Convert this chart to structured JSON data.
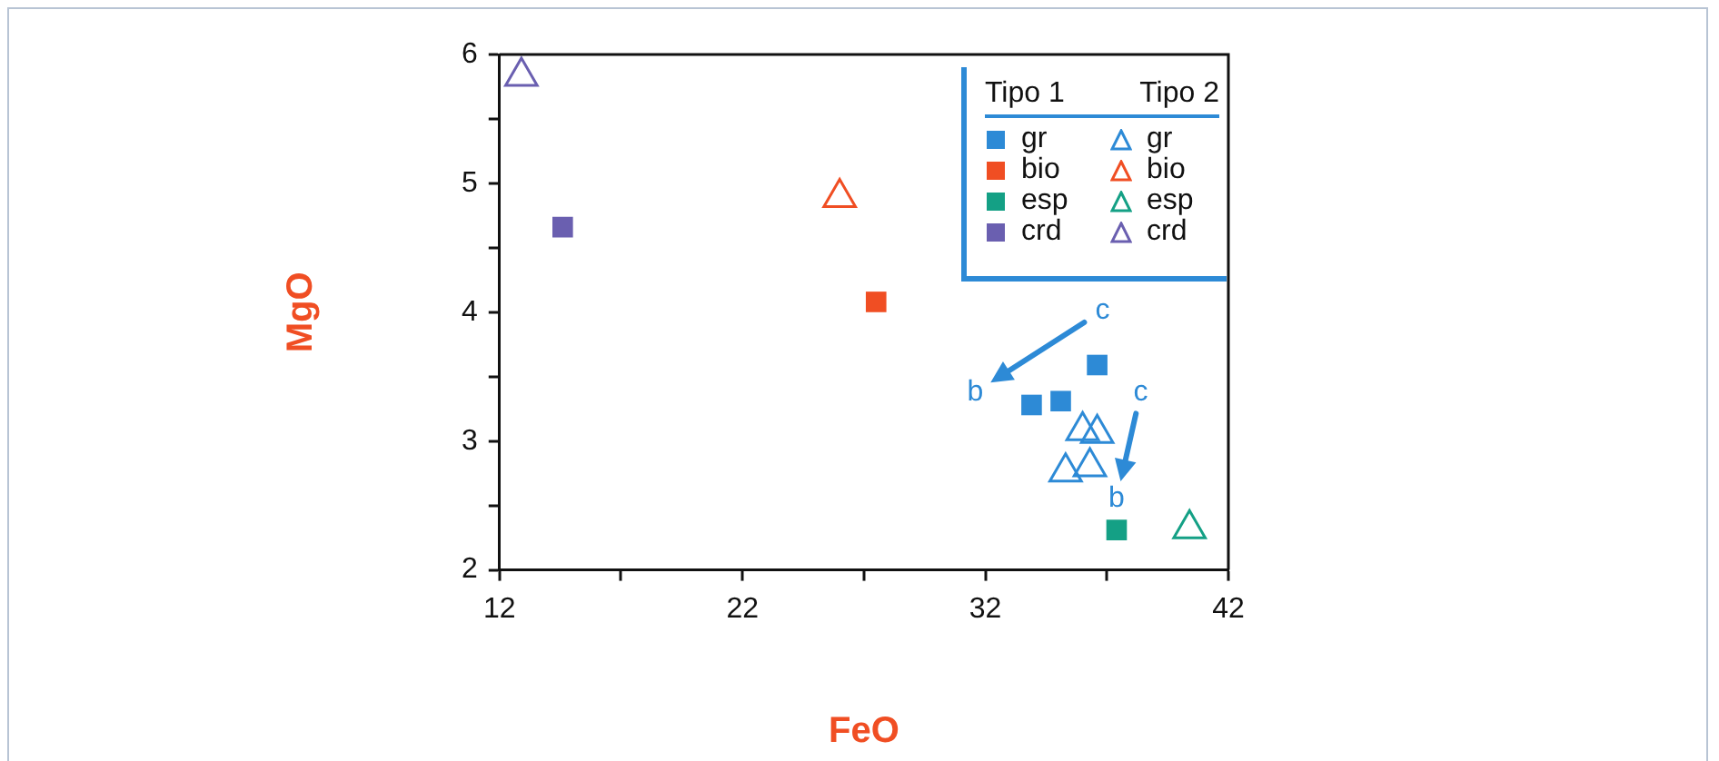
{
  "chart_data": {
    "type": "scatter",
    "xlabel": "FeO",
    "ylabel": "MgO",
    "xlim": [
      12,
      42
    ],
    "ylim": [
      2,
      6
    ],
    "xticks": [
      12,
      {
        "value": 17,
        "label": null
      },
      22,
      {
        "value": 27,
        "label": null
      },
      32,
      {
        "value": 37,
        "label": null
      },
      42
    ],
    "yticks": [
      2,
      {
        "value": 2.5,
        "label": null
      },
      3,
      {
        "value": 3.5,
        "label": null
      },
      4,
      {
        "value": 4.5,
        "label": null
      },
      5,
      {
        "value": 5.5,
        "label": null
      },
      6
    ],
    "grid": false,
    "legend": "top right",
    "series": [
      {
        "name": "gr",
        "color": "#2d8ad6",
        "marker": "square",
        "x": [
          36.6,
          33.9,
          35.1
        ],
        "values": [
          3.59,
          3.28,
          3.31
        ]
      },
      {
        "name": "bio",
        "color": "#f04e23",
        "marker": "square",
        "x": [
          27.5
        ],
        "values": [
          4.08
        ]
      },
      {
        "name": "esp",
        "color": "#14a085",
        "marker": "square",
        "x": [
          37.4
        ],
        "values": [
          2.31
        ]
      },
      {
        "name": "crd",
        "color": "#6a5fb0",
        "marker": "square",
        "x": [
          14.6
        ],
        "values": [
          4.66
        ]
      },
      {
        "name": "gr",
        "color": "#2d8ad6",
        "marker": "triangle",
        "x": [
          36.0,
          36.6,
          35.3,
          36.3
        ],
        "values": [
          3.08,
          3.06,
          2.76,
          2.8
        ]
      },
      {
        "name": "bio",
        "color": "#f04e23",
        "marker": "triangle",
        "x": [
          26.0
        ],
        "values": [
          4.89
        ]
      },
      {
        "name": "esp",
        "color": "#14a085",
        "marker": "triangle",
        "x": [
          40.4
        ],
        "values": [
          2.32
        ]
      },
      {
        "name": "crd",
        "color": "#6a5fb0",
        "marker": "triangle",
        "x": [
          12.9
        ],
        "values": [
          5.83
        ]
      }
    ],
    "annotations": [
      "Tipo 1",
      "Tipo 2",
      {
        "text": "c",
        "x": 36.6,
        "y": 3.59
      },
      {
        "text": "b",
        "x": 33.9,
        "y": 3.28
      },
      {
        "text": "c",
        "x": 36.6,
        "y": 3.59
      },
      {
        "text": "b",
        "x": 37.4,
        "y": 2.31
      }
    ]
  }
}
